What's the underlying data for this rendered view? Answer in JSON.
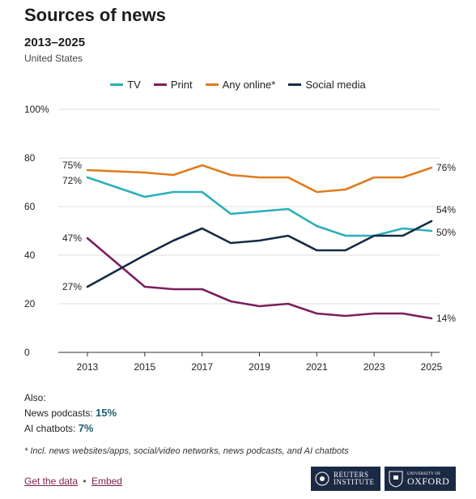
{
  "header": {
    "title": "Sources of news",
    "subtitle": "2013–2025",
    "region": "United States"
  },
  "colors": {
    "tv": "#2ab0b8",
    "print": "#7b1f5e",
    "online": "#e07b1e",
    "social": "#152a44",
    "axis": "#333333",
    "grid": "#dddddd"
  },
  "chart_data": {
    "type": "line",
    "xlabel": "",
    "ylabel": "",
    "xlim": [
      2013,
      2025
    ],
    "ylim": [
      0,
      100
    ],
    "x_ticks": [
      "2013",
      "2015",
      "2017",
      "2019",
      "2021",
      "2023",
      "2025"
    ],
    "y_ticks": [
      "0",
      "20",
      "40",
      "60",
      "80",
      "100%"
    ],
    "legend_position": "top-center",
    "grid": true,
    "series": [
      {
        "name": "TV",
        "key": "tv",
        "x": [
          2013,
          2014,
          2015,
          2016,
          2017,
          2018,
          2019,
          2020,
          2021,
          2022,
          2023,
          2024,
          2025
        ],
        "values": [
          72,
          68,
          64,
          66,
          66,
          57,
          58,
          59,
          52,
          48,
          48,
          51,
          50
        ],
        "start_label": "72%",
        "end_label": "50%"
      },
      {
        "name": "Print",
        "key": "print",
        "x": [
          2013,
          2014,
          2015,
          2016,
          2017,
          2018,
          2019,
          2020,
          2021,
          2022,
          2023,
          2024,
          2025
        ],
        "values": [
          47,
          37,
          27,
          26,
          26,
          21,
          19,
          20,
          16,
          15,
          16,
          16,
          14
        ],
        "start_label": "47%",
        "end_label": "14%"
      },
      {
        "name": "Any online*",
        "key": "online",
        "x": [
          2013,
          2014,
          2015,
          2016,
          2017,
          2018,
          2019,
          2020,
          2021,
          2022,
          2023,
          2024,
          2025
        ],
        "values": [
          75,
          74.5,
          74,
          73,
          77,
          73,
          72,
          72,
          66,
          67,
          72,
          72,
          76
        ],
        "start_label": "75%",
        "end_label": "76%"
      },
      {
        "name": "Social media",
        "key": "social",
        "x": [
          2013,
          2014,
          2015,
          2016,
          2017,
          2018,
          2019,
          2020,
          2021,
          2022,
          2023,
          2024,
          2025
        ],
        "values": [
          27,
          33.5,
          40,
          46,
          51,
          45,
          46,
          48,
          42,
          42,
          48,
          48,
          54
        ],
        "start_label": "27%",
        "end_label": "54%"
      }
    ]
  },
  "also": {
    "label": "Also",
    "colon": ":",
    "rows": [
      {
        "label": "News podcasts: ",
        "value": "15%"
      },
      {
        "label": "AI chatbots: ",
        "value": "7%"
      }
    ]
  },
  "footnote": "* Incl. news websites/apps, social/video networks, news podcasts, and AI chatbots",
  "links": {
    "get_data": "Get the data",
    "separator": "•",
    "embed": "Embed"
  },
  "logos": {
    "reuters_line1": "REUTERS",
    "reuters_line2": "INSTITUTE",
    "oxford_line1": "UNIVERSITY OF",
    "oxford_line2": "OXFORD"
  }
}
